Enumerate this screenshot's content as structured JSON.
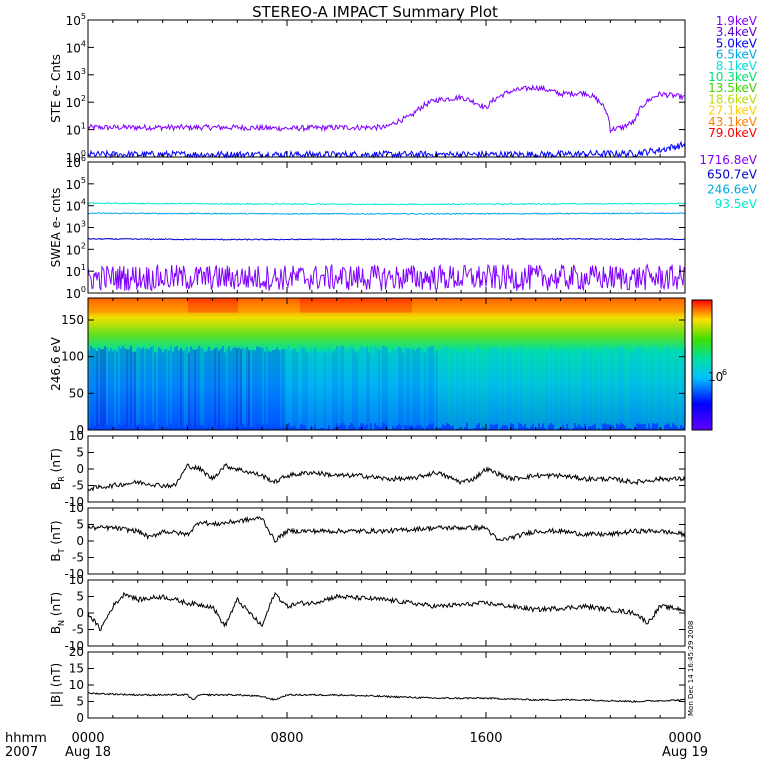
{
  "title": "STEREO-A IMPACT Summary Plot",
  "side_stamp": "Mon Dec 14 16:45:29 2008",
  "time_axis": {
    "corner_label": [
      "hhmm",
      "2007"
    ],
    "ticks": [
      {
        "hour": 0,
        "label": "0000",
        "date": "Aug 18"
      },
      {
        "hour": 8,
        "label": "0800",
        "date": ""
      },
      {
        "hour": 16,
        "label": "1600",
        "date": ""
      },
      {
        "hour": 24,
        "label": "0000",
        "date": "Aug 19"
      }
    ],
    "range_hours": [
      0,
      24
    ]
  },
  "colors": {
    "ste_legend": [
      "#8000ff",
      "#5a00d0",
      "#0000ff",
      "#00a8e8",
      "#00e0e0",
      "#00e070",
      "#40d000",
      "#b8e000",
      "#ffd000",
      "#ff8000",
      "#ff0000"
    ],
    "swea_legend": [
      "#8000ff",
      "#0000d0",
      "#00a8e8",
      "#00e8d0"
    ]
  },
  "chart_data": [
    {
      "type": "line",
      "id": "ste",
      "ylabel": "STE e- Cnts",
      "yscale": "log",
      "ylim": [
        1,
        100000
      ],
      "yticks": [
        {
          "v": 1,
          "mant": "10",
          "exp": "0"
        },
        {
          "v": 10,
          "mant": "10",
          "exp": "1"
        },
        {
          "v": 100,
          "mant": "10",
          "exp": "2"
        },
        {
          "v": 1000,
          "mant": "10",
          "exp": "3"
        },
        {
          "v": 10000,
          "mant": "10",
          "exp": "4"
        },
        {
          "v": 100000,
          "mant": "10",
          "exp": "5"
        }
      ],
      "legend": [
        "1.9keV",
        "3.4keV",
        "5.0keV",
        "6.5keV",
        "8.1keV",
        "10.3keV",
        "13.5keV",
        "18.6keV",
        "27.1keV",
        "43.1keV",
        "79.0keV"
      ],
      "series": [
        {
          "name": "1.9keV",
          "x": [
            0,
            2,
            4,
            6,
            8,
            10,
            12,
            13,
            14,
            15,
            16,
            17,
            18,
            19,
            20,
            21,
            21.5,
            22,
            23,
            24
          ],
          "y": [
            12,
            12,
            12,
            12,
            11,
            12,
            12,
            30,
            120,
            150,
            60,
            250,
            350,
            200,
            220,
            10,
            12,
            20,
            200,
            150
          ]
        },
        {
          "name": "5.0keV",
          "x": [
            0,
            6,
            12,
            18,
            22,
            23,
            24
          ],
          "y": [
            1.1,
            1.1,
            1.1,
            1.1,
            1.2,
            1.6,
            2.5
          ]
        }
      ]
    },
    {
      "type": "line",
      "id": "swea",
      "ylabel": "SWEA e- cnts",
      "yscale": "log",
      "ylim": [
        1,
        1000000
      ],
      "yticks": [
        {
          "v": 1,
          "mant": "10",
          "exp": "0"
        },
        {
          "v": 10,
          "mant": "10",
          "exp": "1"
        },
        {
          "v": 100,
          "mant": "10",
          "exp": "2"
        },
        {
          "v": 1000,
          "mant": "10",
          "exp": "3"
        },
        {
          "v": 10000,
          "mant": "10",
          "exp": "4"
        },
        {
          "v": 100000,
          "mant": "10",
          "exp": "5"
        },
        {
          "v": 1000000,
          "mant": "10",
          "exp": "6"
        }
      ],
      "legend": [
        "1716.8eV",
        "650.7eV",
        "246.6eV",
        "93.5eV"
      ],
      "series": [
        {
          "name": "93.5eV",
          "x": [
            0,
            6,
            12,
            18,
            24
          ],
          "y": [
            13000,
            12000,
            11500,
            12000,
            12500
          ]
        },
        {
          "name": "246.6eV",
          "x": [
            0,
            6,
            12,
            18,
            24
          ],
          "y": [
            4500,
            4300,
            4200,
            4300,
            4500
          ]
        },
        {
          "name": "650.7eV",
          "x": [
            0,
            6,
            12,
            18,
            24
          ],
          "y": [
            300,
            280,
            290,
            300,
            290
          ]
        },
        {
          "name": "1716.8eV",
          "x": [
            0,
            6,
            12,
            18,
            24
          ],
          "y": [
            5,
            5,
            5,
            5,
            5
          ]
        }
      ]
    },
    {
      "type": "heatmap",
      "id": "pad",
      "ylabel": "246.6 eV",
      "ylim": [
        0,
        180
      ],
      "yticks": [
        0,
        50,
        100,
        150
      ],
      "colorbar_label": "10",
      "colorbar_exp": "6"
    },
    {
      "type": "line",
      "id": "br",
      "ylabel": "B",
      "ysub": "R",
      "yunit": " (nT)",
      "ylim": [
        -10,
        10
      ],
      "yticks": [
        -10,
        -5,
        0,
        5,
        10
      ],
      "series": [
        {
          "x": [
            0,
            1,
            2,
            3,
            3.5,
            4,
            4.5,
            5,
            5.5,
            6,
            6.5,
            7,
            7.5,
            8,
            9,
            10,
            11,
            12,
            13,
            14,
            15,
            15.5,
            16,
            17,
            18,
            19,
            20,
            21,
            22,
            23,
            24
          ],
          "y": [
            -6,
            -5,
            -4,
            -5,
            -5,
            1,
            0,
            -3,
            1,
            0,
            -1,
            -2,
            -4,
            -2,
            -1,
            -2,
            -2,
            -3,
            -3,
            -1,
            -4,
            -3,
            0,
            -3,
            -2,
            -2,
            -3,
            -3,
            -4,
            -3,
            -3
          ]
        }
      ]
    },
    {
      "type": "line",
      "id": "bt",
      "ylabel": "B",
      "ysub": "T",
      "yunit": " (nT)",
      "ylim": [
        -10,
        10
      ],
      "yticks": [
        -10,
        -5,
        0,
        5,
        10
      ],
      "series": [
        {
          "x": [
            0,
            1,
            2,
            2.5,
            3,
            4,
            4.5,
            5,
            6,
            7,
            7.5,
            8,
            9,
            10,
            12,
            14,
            16,
            16.5,
            17,
            18,
            19,
            20,
            21,
            22,
            23,
            24
          ],
          "y": [
            4,
            4,
            3,
            1,
            3,
            2,
            6,
            5,
            6,
            7,
            0,
            3,
            3,
            3,
            3,
            4,
            4,
            0,
            1,
            3,
            3,
            2,
            2,
            3,
            3,
            2
          ]
        }
      ]
    },
    {
      "type": "line",
      "id": "bn",
      "ylabel": "B",
      "ysub": "N",
      "yunit": " (nT)",
      "ylim": [
        -10,
        10
      ],
      "yticks": [
        -10,
        -5,
        0,
        5,
        10
      ],
      "series": [
        {
          "x": [
            0,
            0.5,
            1,
            1.5,
            2,
            3,
            4,
            5,
            5.5,
            6,
            6.5,
            7,
            7.5,
            8,
            8.5,
            9,
            10,
            12,
            14,
            16,
            18,
            20,
            22,
            22.5,
            23,
            24
          ],
          "y": [
            0,
            -5,
            2,
            6,
            4,
            5,
            3,
            2,
            -4,
            4,
            0,
            -4,
            6,
            2,
            3,
            3,
            5,
            4,
            2,
            3,
            1,
            2,
            0,
            -3,
            2,
            1
          ]
        }
      ]
    },
    {
      "type": "line",
      "id": "bmag",
      "ylabel": "|B|",
      "yunit": " (nT)",
      "ylim": [
        0,
        20
      ],
      "yticks": [
        0,
        5,
        10,
        15,
        20
      ],
      "series": [
        {
          "x": [
            0,
            2,
            4,
            4.2,
            4.5,
            6,
            7,
            7.5,
            8,
            10,
            12,
            14,
            16,
            18,
            20,
            22,
            24
          ],
          "y": [
            7.5,
            7,
            7,
            5.5,
            7,
            7,
            6.5,
            5.5,
            7,
            7,
            6.5,
            6,
            6,
            5.5,
            5.5,
            5,
            5.5
          ]
        }
      ]
    }
  ]
}
